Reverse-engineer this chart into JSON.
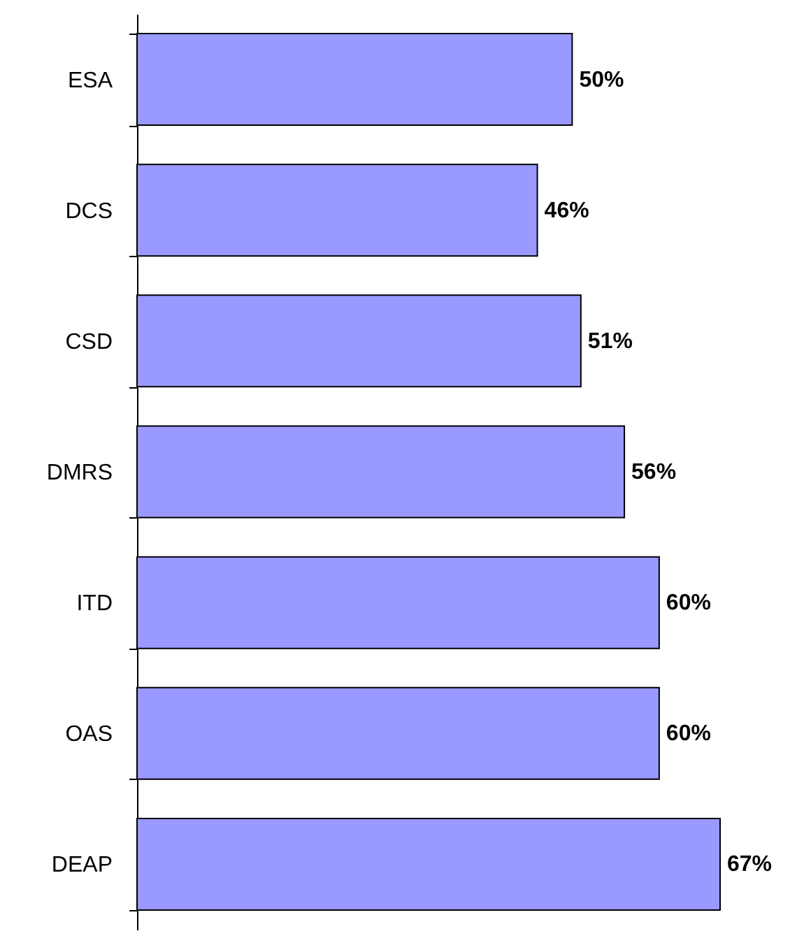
{
  "chart_data": {
    "type": "bar",
    "orientation": "horizontal",
    "categories": [
      "ESA",
      "DCS",
      "CSD",
      "DMRS",
      "ITD",
      "OAS",
      "DEAP"
    ],
    "values": [
      50,
      46,
      51,
      56,
      60,
      60,
      67
    ],
    "value_labels": [
      "50%",
      "46%",
      "51%",
      "56%",
      "60%",
      "60%",
      "67%"
    ],
    "color": "#9999ff"
  }
}
